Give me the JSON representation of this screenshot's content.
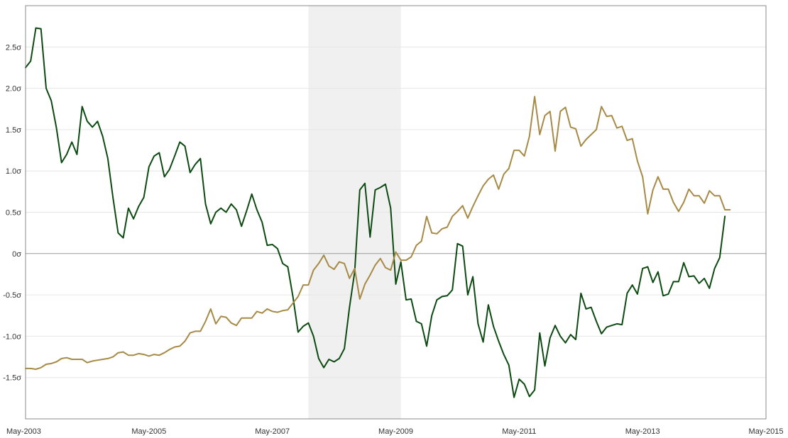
{
  "chart_data": {
    "type": "line",
    "title": "",
    "xlabel": "",
    "ylabel": "",
    "x_ticks": [
      "May-2003",
      "May-2005",
      "May-2007",
      "May-2009",
      "May-2011",
      "May-2013",
      "May-2015"
    ],
    "y_ticks": [
      "2.5σ",
      "2.0σ",
      "1.5σ",
      "1.0σ",
      "0.5σ",
      "0σ",
      "-0.5σ",
      "-1.0σ",
      "-1.5σ"
    ],
    "y_tick_values": [
      2.5,
      2.0,
      1.5,
      1.0,
      0.5,
      0,
      -0.5,
      -1.0,
      -1.5
    ],
    "xlim": [
      "2003-05",
      "2015-05"
    ],
    "ylim": [
      -2.0,
      3.0
    ],
    "grid": true,
    "shaded_region": {
      "start": "2007-12",
      "end": "2009-06",
      "color": "#f0f0f0"
    },
    "series": [
      {
        "color": "#0d4a12",
        "points": [
          [
            "2003-05",
            2.25
          ],
          [
            "2003-06",
            2.33
          ],
          [
            "2003-07",
            2.73
          ],
          [
            "2003-08",
            2.72
          ],
          [
            "2003-09",
            2.0
          ],
          [
            "2003-10",
            1.85
          ],
          [
            "2003-11",
            1.52
          ],
          [
            "2003-12",
            1.1
          ],
          [
            "2004-01",
            1.2
          ],
          [
            "2004-02",
            1.35
          ],
          [
            "2004-03",
            1.2
          ],
          [
            "2004-04",
            1.78
          ],
          [
            "2004-05",
            1.6
          ],
          [
            "2004-06",
            1.53
          ],
          [
            "2004-07",
            1.6
          ],
          [
            "2004-08",
            1.42
          ],
          [
            "2004-09",
            1.15
          ],
          [
            "2004-10",
            0.68
          ],
          [
            "2004-11",
            0.25
          ],
          [
            "2004-12",
            0.19
          ],
          [
            "2005-01",
            0.55
          ],
          [
            "2005-02",
            0.42
          ],
          [
            "2005-03",
            0.57
          ],
          [
            "2005-04",
            0.68
          ],
          [
            "2005-05",
            1.05
          ],
          [
            "2005-06",
            1.18
          ],
          [
            "2005-07",
            1.22
          ],
          [
            "2005-08",
            0.93
          ],
          [
            "2005-09",
            1.02
          ],
          [
            "2005-10",
            1.18
          ],
          [
            "2005-11",
            1.35
          ],
          [
            "2005-12",
            1.3
          ],
          [
            "2006-01",
            0.98
          ],
          [
            "2006-02",
            1.08
          ],
          [
            "2006-03",
            1.15
          ],
          [
            "2006-04",
            0.6
          ],
          [
            "2006-05",
            0.36
          ],
          [
            "2006-06",
            0.5
          ],
          [
            "2006-07",
            0.55
          ],
          [
            "2006-08",
            0.5
          ],
          [
            "2006-09",
            0.6
          ],
          [
            "2006-10",
            0.53
          ],
          [
            "2006-11",
            0.33
          ],
          [
            "2006-12",
            0.52
          ],
          [
            "2007-01",
            0.72
          ],
          [
            "2007-02",
            0.53
          ],
          [
            "2007-03",
            0.38
          ],
          [
            "2007-04",
            0.1
          ],
          [
            "2007-05",
            0.11
          ],
          [
            "2007-06",
            0.06
          ],
          [
            "2007-07",
            -0.12
          ],
          [
            "2007-08",
            -0.16
          ],
          [
            "2007-09",
            -0.52
          ],
          [
            "2007-10",
            -0.95
          ],
          [
            "2007-11",
            -0.88
          ],
          [
            "2007-12",
            -0.84
          ],
          [
            "2008-01",
            -1.0
          ],
          [
            "2008-02",
            -1.27
          ],
          [
            "2008-03",
            -1.38
          ],
          [
            "2008-04",
            -1.28
          ],
          [
            "2008-05",
            -1.31
          ],
          [
            "2008-06",
            -1.27
          ],
          [
            "2008-07",
            -1.15
          ],
          [
            "2008-08",
            -0.65
          ],
          [
            "2008-09",
            -0.22
          ],
          [
            "2008-10",
            0.77
          ],
          [
            "2008-11",
            0.85
          ],
          [
            "2008-12",
            0.2
          ],
          [
            "2009-01",
            0.77
          ],
          [
            "2009-02",
            0.8
          ],
          [
            "2009-03",
            0.84
          ],
          [
            "2009-04",
            0.55
          ],
          [
            "2009-05",
            -0.37
          ],
          [
            "2009-06",
            -0.1
          ],
          [
            "2009-07",
            -0.56
          ],
          [
            "2009-08",
            -0.55
          ],
          [
            "2009-09",
            -0.82
          ],
          [
            "2009-10",
            -0.85
          ],
          [
            "2009-11",
            -1.12
          ],
          [
            "2009-12",
            -0.75
          ],
          [
            "2010-01",
            -0.56
          ],
          [
            "2010-02",
            -0.52
          ],
          [
            "2010-03",
            -0.51
          ],
          [
            "2010-04",
            -0.44
          ],
          [
            "2010-05",
            0.12
          ],
          [
            "2010-06",
            0.09
          ],
          [
            "2010-07",
            -0.5
          ],
          [
            "2010-08",
            -0.28
          ],
          [
            "2010-09",
            -0.85
          ],
          [
            "2010-10",
            -1.07
          ],
          [
            "2010-11",
            -0.62
          ],
          [
            "2010-12",
            -0.88
          ],
          [
            "2011-01",
            -1.06
          ],
          [
            "2011-02",
            -1.22
          ],
          [
            "2011-03",
            -1.35
          ],
          [
            "2011-04",
            -1.74
          ],
          [
            "2011-05",
            -1.52
          ],
          [
            "2011-06",
            -1.58
          ],
          [
            "2011-07",
            -1.73
          ],
          [
            "2011-08",
            -1.65
          ],
          [
            "2011-09",
            -0.96
          ],
          [
            "2011-10",
            -1.36
          ],
          [
            "2011-11",
            -1.02
          ],
          [
            "2011-12",
            -0.87
          ],
          [
            "2012-01",
            -1.0
          ],
          [
            "2012-02",
            -1.08
          ],
          [
            "2012-03",
            -0.98
          ],
          [
            "2012-04",
            -1.04
          ],
          [
            "2012-05",
            -0.48
          ],
          [
            "2012-06",
            -0.67
          ],
          [
            "2012-07",
            -0.65
          ],
          [
            "2012-08",
            -0.82
          ],
          [
            "2012-09",
            -0.97
          ],
          [
            "2012-10",
            -0.89
          ],
          [
            "2012-11",
            -0.87
          ],
          [
            "2012-12",
            -0.85
          ],
          [
            "2013-01",
            -0.86
          ],
          [
            "2013-02",
            -0.48
          ],
          [
            "2013-03",
            -0.38
          ],
          [
            "2013-04",
            -0.49
          ],
          [
            "2013-05",
            -0.18
          ],
          [
            "2013-06",
            -0.16
          ],
          [
            "2013-07",
            -0.35
          ],
          [
            "2013-08",
            -0.22
          ],
          [
            "2013-09",
            -0.51
          ],
          [
            "2013-10",
            -0.49
          ],
          [
            "2013-11",
            -0.34
          ],
          [
            "2013-12",
            -0.34
          ],
          [
            "2014-01",
            -0.11
          ],
          [
            "2014-02",
            -0.28
          ],
          [
            "2014-03",
            -0.27
          ],
          [
            "2014-04",
            -0.36
          ],
          [
            "2014-05",
            -0.3
          ],
          [
            "2014-06",
            -0.42
          ],
          [
            "2014-07",
            -0.18
          ],
          [
            "2014-08",
            -0.05
          ],
          [
            "2014-09",
            0.45
          ]
        ]
      },
      {
        "color": "#a68a45",
        "points": [
          [
            "2003-05",
            -1.39
          ],
          [
            "2003-06",
            -1.39
          ],
          [
            "2003-07",
            -1.4
          ],
          [
            "2003-08",
            -1.38
          ],
          [
            "2003-09",
            -1.34
          ],
          [
            "2003-10",
            -1.33
          ],
          [
            "2003-11",
            -1.31
          ],
          [
            "2003-12",
            -1.27
          ],
          [
            "2004-01",
            -1.26
          ],
          [
            "2004-02",
            -1.28
          ],
          [
            "2004-03",
            -1.28
          ],
          [
            "2004-04",
            -1.28
          ],
          [
            "2004-05",
            -1.32
          ],
          [
            "2004-06",
            -1.3
          ],
          [
            "2004-07",
            -1.29
          ],
          [
            "2004-08",
            -1.28
          ],
          [
            "2004-09",
            -1.27
          ],
          [
            "2004-10",
            -1.25
          ],
          [
            "2004-11",
            -1.2
          ],
          [
            "2004-12",
            -1.19
          ],
          [
            "2005-01",
            -1.23
          ],
          [
            "2005-02",
            -1.23
          ],
          [
            "2005-03",
            -1.21
          ],
          [
            "2005-04",
            -1.22
          ],
          [
            "2005-05",
            -1.24
          ],
          [
            "2005-06",
            -1.22
          ],
          [
            "2005-07",
            -1.23
          ],
          [
            "2005-08",
            -1.2
          ],
          [
            "2005-09",
            -1.16
          ],
          [
            "2005-10",
            -1.13
          ],
          [
            "2005-11",
            -1.12
          ],
          [
            "2005-12",
            -1.06
          ],
          [
            "2006-01",
            -0.96
          ],
          [
            "2006-02",
            -0.94
          ],
          [
            "2006-03",
            -0.94
          ],
          [
            "2006-04",
            -0.82
          ],
          [
            "2006-05",
            -0.67
          ],
          [
            "2006-06",
            -0.85
          ],
          [
            "2006-07",
            -0.76
          ],
          [
            "2006-08",
            -0.77
          ],
          [
            "2006-09",
            -0.84
          ],
          [
            "2006-10",
            -0.87
          ],
          [
            "2006-11",
            -0.78
          ],
          [
            "2006-12",
            -0.78
          ],
          [
            "2007-01",
            -0.78
          ],
          [
            "2007-02",
            -0.7
          ],
          [
            "2007-03",
            -0.72
          ],
          [
            "2007-04",
            -0.67
          ],
          [
            "2007-05",
            -0.7
          ],
          [
            "2007-06",
            -0.71
          ],
          [
            "2007-07",
            -0.69
          ],
          [
            "2007-08",
            -0.68
          ],
          [
            "2007-09",
            -0.6
          ],
          [
            "2007-10",
            -0.52
          ],
          [
            "2007-11",
            -0.38
          ],
          [
            "2007-12",
            -0.38
          ],
          [
            "2008-01",
            -0.2
          ],
          [
            "2008-02",
            -0.12
          ],
          [
            "2008-03",
            -0.02
          ],
          [
            "2008-04",
            -0.15
          ],
          [
            "2008-05",
            -0.19
          ],
          [
            "2008-06",
            -0.1
          ],
          [
            "2008-07",
            -0.12
          ],
          [
            "2008-08",
            -0.3
          ],
          [
            "2008-09",
            -0.18
          ],
          [
            "2008-10",
            -0.55
          ],
          [
            "2008-11",
            -0.37
          ],
          [
            "2008-12",
            -0.26
          ],
          [
            "2009-01",
            -0.14
          ],
          [
            "2009-02",
            -0.06
          ],
          [
            "2009-03",
            -0.17
          ],
          [
            "2009-04",
            -0.2
          ],
          [
            "2009-05",
            0.02
          ],
          [
            "2009-06",
            -0.08
          ],
          [
            "2009-07",
            -0.08
          ],
          [
            "2009-08",
            -0.04
          ],
          [
            "2009-09",
            0.1
          ],
          [
            "2009-10",
            0.15
          ],
          [
            "2009-11",
            0.45
          ],
          [
            "2009-12",
            0.25
          ],
          [
            "2010-01",
            0.24
          ],
          [
            "2010-02",
            0.3
          ],
          [
            "2010-03",
            0.32
          ],
          [
            "2010-04",
            0.45
          ],
          [
            "2010-05",
            0.51
          ],
          [
            "2010-06",
            0.58
          ],
          [
            "2010-07",
            0.43
          ],
          [
            "2010-08",
            0.57
          ],
          [
            "2010-09",
            0.7
          ],
          [
            "2010-10",
            0.82
          ],
          [
            "2010-11",
            0.9
          ],
          [
            "2010-12",
            0.95
          ],
          [
            "2011-01",
            0.78
          ],
          [
            "2011-02",
            0.96
          ],
          [
            "2011-03",
            1.03
          ],
          [
            "2011-04",
            1.25
          ],
          [
            "2011-05",
            1.25
          ],
          [
            "2011-06",
            1.18
          ],
          [
            "2011-07",
            1.42
          ],
          [
            "2011-08",
            1.9
          ],
          [
            "2011-09",
            1.44
          ],
          [
            "2011-10",
            1.67
          ],
          [
            "2011-11",
            1.72
          ],
          [
            "2011-12",
            1.24
          ],
          [
            "2012-01",
            1.72
          ],
          [
            "2012-02",
            1.77
          ],
          [
            "2012-03",
            1.53
          ],
          [
            "2012-04",
            1.51
          ],
          [
            "2012-05",
            1.3
          ],
          [
            "2012-06",
            1.38
          ],
          [
            "2012-07",
            1.44
          ],
          [
            "2012-08",
            1.5
          ],
          [
            "2012-09",
            1.78
          ],
          [
            "2012-10",
            1.66
          ],
          [
            "2012-11",
            1.67
          ],
          [
            "2012-12",
            1.52
          ],
          [
            "2013-01",
            1.54
          ],
          [
            "2013-02",
            1.37
          ],
          [
            "2013-03",
            1.39
          ],
          [
            "2013-04",
            1.12
          ],
          [
            "2013-05",
            0.93
          ],
          [
            "2013-06",
            0.48
          ],
          [
            "2013-07",
            0.77
          ],
          [
            "2013-08",
            0.93
          ],
          [
            "2013-09",
            0.78
          ],
          [
            "2013-10",
            0.78
          ],
          [
            "2013-11",
            0.62
          ],
          [
            "2013-12",
            0.51
          ],
          [
            "2014-01",
            0.62
          ],
          [
            "2014-02",
            0.78
          ],
          [
            "2014-03",
            0.7
          ],
          [
            "2014-04",
            0.7
          ],
          [
            "2014-05",
            0.61
          ],
          [
            "2014-06",
            0.76
          ],
          [
            "2014-07",
            0.7
          ],
          [
            "2014-08",
            0.7
          ],
          [
            "2014-09",
            0.53
          ],
          [
            "2014-10",
            0.53
          ]
        ]
      }
    ]
  }
}
